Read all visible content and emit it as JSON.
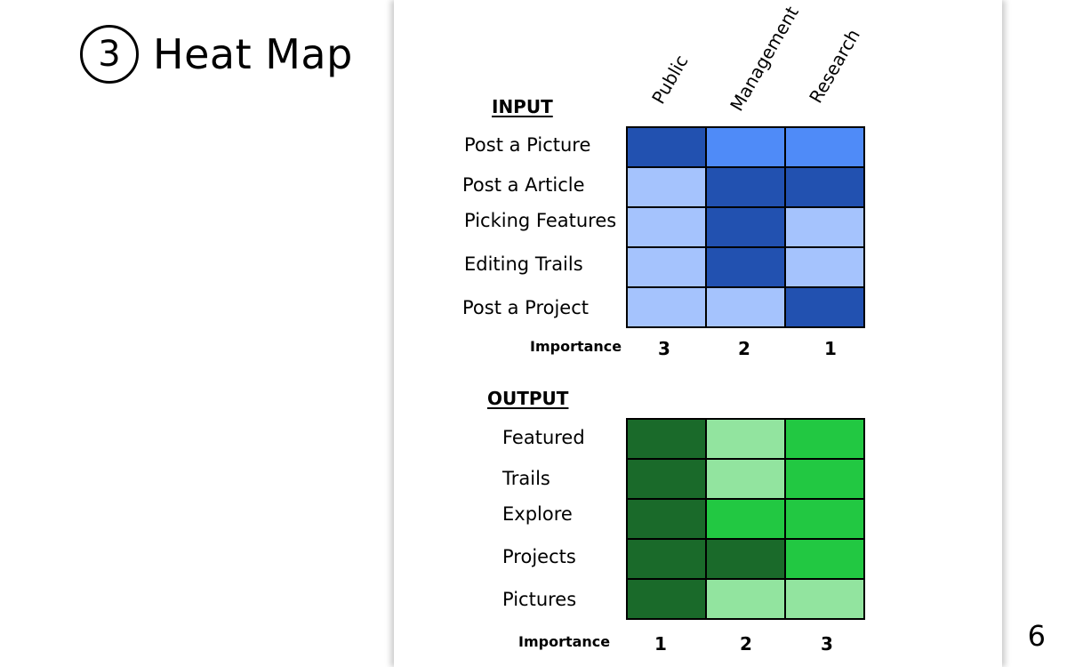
{
  "slide": {
    "number_symbol": "3",
    "title": "Heat Map",
    "page_number": "6"
  },
  "chart_data": [
    {
      "type": "heatmap",
      "title": "INPUT",
      "columns": [
        "Public",
        "Management",
        "Research"
      ],
      "rows": [
        "Post a Picture",
        "Post a Article",
        "Picking Features",
        "Editing Trails",
        "Post a Project"
      ],
      "values": [
        [
          3,
          2,
          2
        ],
        [
          1,
          3,
          3
        ],
        [
          1,
          3,
          1
        ],
        [
          1,
          3,
          1
        ],
        [
          1,
          1,
          3
        ]
      ],
      "color_scale": {
        "1": "#a5c3fd",
        "2": "#4f8bf8",
        "3": "#2251b0"
      },
      "importance_label": "Importance",
      "importance": [
        3,
        2,
        1
      ]
    },
    {
      "type": "heatmap",
      "title": "OUTPUT",
      "columns": [
        "Public",
        "Management",
        "Research"
      ],
      "rows": [
        "Featured",
        "Trails",
        "Explore",
        "Projects",
        "Pictures"
      ],
      "values": [
        [
          3,
          1,
          2
        ],
        [
          3,
          1,
          2
        ],
        [
          3,
          2,
          2
        ],
        [
          3,
          3,
          2
        ],
        [
          3,
          1,
          1
        ]
      ],
      "color_scale": {
        "1": "#92e49f",
        "2": "#22c842",
        "3": "#1a6a2a"
      },
      "importance_label": "Importance",
      "importance": [
        1,
        2,
        3
      ]
    }
  ]
}
